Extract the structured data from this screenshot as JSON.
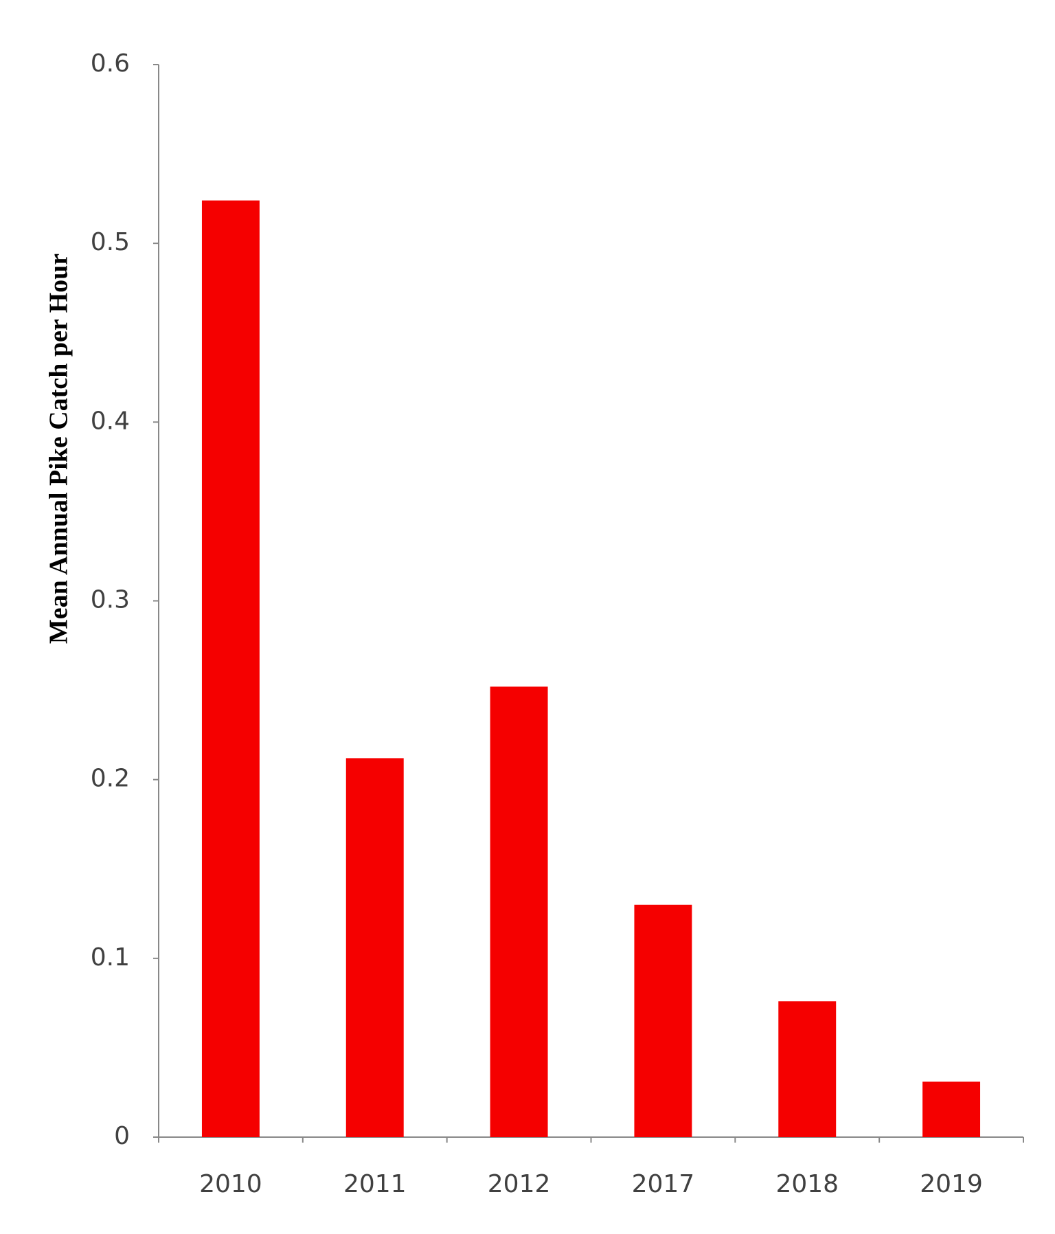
{
  "chart_data": {
    "type": "bar",
    "y_label": "Mean Annual Pike Catch per Hour",
    "categories": [
      "2010",
      "2011",
      "2012",
      "2017",
      "2018",
      "2019"
    ],
    "values": [
      0.524,
      0.212,
      0.252,
      0.13,
      0.076,
      0.031
    ],
    "color": "#f50000",
    "ylim": [
      0,
      0.6
    ],
    "yticks": [
      0,
      0.1,
      0.2,
      0.3,
      0.4,
      0.5,
      0.6
    ],
    "grid": false
  }
}
